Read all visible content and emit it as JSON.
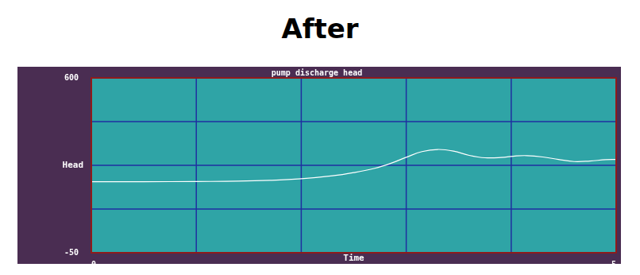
{
  "heading": "After",
  "chart_data": {
    "type": "line",
    "title": "pump discharge head",
    "x_label": "Time",
    "y_label": "Head",
    "x": [
      0,
      0.5,
      1.0,
      1.4,
      1.7,
      2.0,
      2.3,
      2.5,
      2.7,
      2.85,
      3.0,
      3.15,
      3.3,
      3.45,
      3.6,
      3.75,
      3.9,
      4.05,
      4.15,
      4.3,
      4.45,
      4.6,
      4.75,
      4.9,
      5.0
    ],
    "values": [
      214,
      214,
      215,
      216,
      219,
      225,
      236,
      248,
      264,
      282,
      305,
      326,
      334,
      328,
      312,
      303,
      304,
      310,
      311,
      306,
      297,
      289,
      291,
      296,
      297
    ],
    "color": "#ffffff",
    "xlim": [
      0,
      5
    ],
    "ylim": [
      -50,
      600
    ],
    "xticks": [
      0,
      5
    ],
    "yticks": [
      -50,
      600
    ],
    "grid": true
  }
}
